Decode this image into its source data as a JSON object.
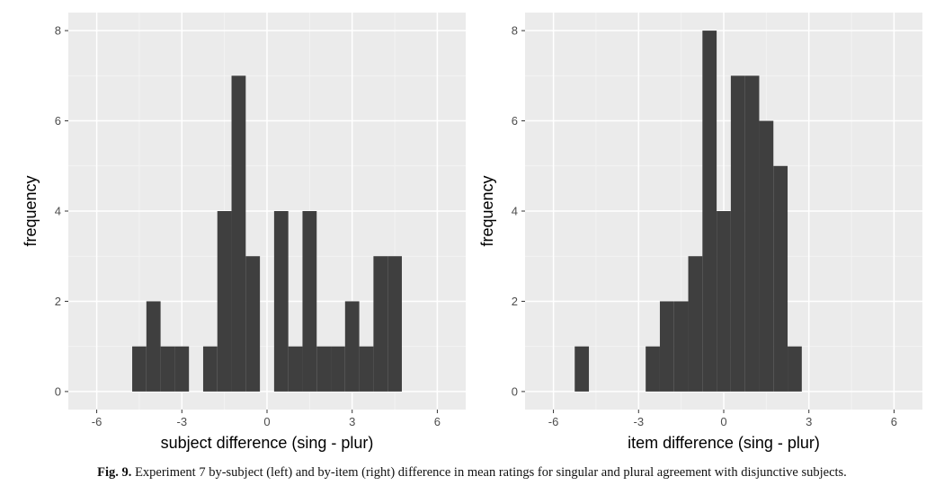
{
  "chart_data": [
    {
      "type": "bar",
      "xlabel": "subject difference (sing - plur)",
      "ylabel": "frequency",
      "xlim": [
        -7,
        7
      ],
      "ylim": [
        -0.4,
        8.4
      ],
      "x_ticks": [
        -6,
        -3,
        0,
        3,
        6
      ],
      "y_ticks": [
        0,
        2,
        4,
        6,
        8
      ],
      "bin_width": 0.5,
      "bins": [
        {
          "x": -4.5,
          "count": 1
        },
        {
          "x": -4.0,
          "count": 2
        },
        {
          "x": -3.5,
          "count": 1
        },
        {
          "x": -3.0,
          "count": 1
        },
        {
          "x": -2.0,
          "count": 1
        },
        {
          "x": -1.5,
          "count": 4
        },
        {
          "x": -1.0,
          "count": 7
        },
        {
          "x": -0.5,
          "count": 3
        },
        {
          "x": 0.5,
          "count": 4
        },
        {
          "x": 1.0,
          "count": 1
        },
        {
          "x": 1.5,
          "count": 4
        },
        {
          "x": 2.0,
          "count": 1
        },
        {
          "x": 2.5,
          "count": 1
        },
        {
          "x": 3.0,
          "count": 2
        },
        {
          "x": 3.5,
          "count": 1
        },
        {
          "x": 4.0,
          "count": 3
        },
        {
          "x": 4.5,
          "count": 3
        }
      ],
      "grid": true
    },
    {
      "type": "bar",
      "xlabel": "item difference (sing - plur)",
      "ylabel": "frequency",
      "xlim": [
        -7,
        7
      ],
      "ylim": [
        -0.4,
        8.4
      ],
      "x_ticks": [
        -6,
        -3,
        0,
        3,
        6
      ],
      "y_ticks": [
        0,
        2,
        4,
        6,
        8
      ],
      "bin_width": 0.5,
      "bins": [
        {
          "x": -5.0,
          "count": 1
        },
        {
          "x": -2.5,
          "count": 1
        },
        {
          "x": -2.0,
          "count": 2
        },
        {
          "x": -1.5,
          "count": 2
        },
        {
          "x": -1.0,
          "count": 3
        },
        {
          "x": -0.5,
          "count": 8
        },
        {
          "x": 0.0,
          "count": 4
        },
        {
          "x": 0.5,
          "count": 7
        },
        {
          "x": 1.0,
          "count": 7
        },
        {
          "x": 1.5,
          "count": 6
        },
        {
          "x": 2.0,
          "count": 5
        },
        {
          "x": 2.5,
          "count": 1
        }
      ],
      "grid": true
    }
  ],
  "colors": {
    "panel": "#ebebeb",
    "grid_major": "#ffffff",
    "grid_minor": "#f5f5f5",
    "bar": "#3f3f3f",
    "tick": "#333333"
  },
  "caption": {
    "label": "Fig. 9.",
    "text": " Experiment 7 by-subject (left) and by-item (right) difference in mean ratings for singular and plural agreement with disjunctive subjects."
  }
}
